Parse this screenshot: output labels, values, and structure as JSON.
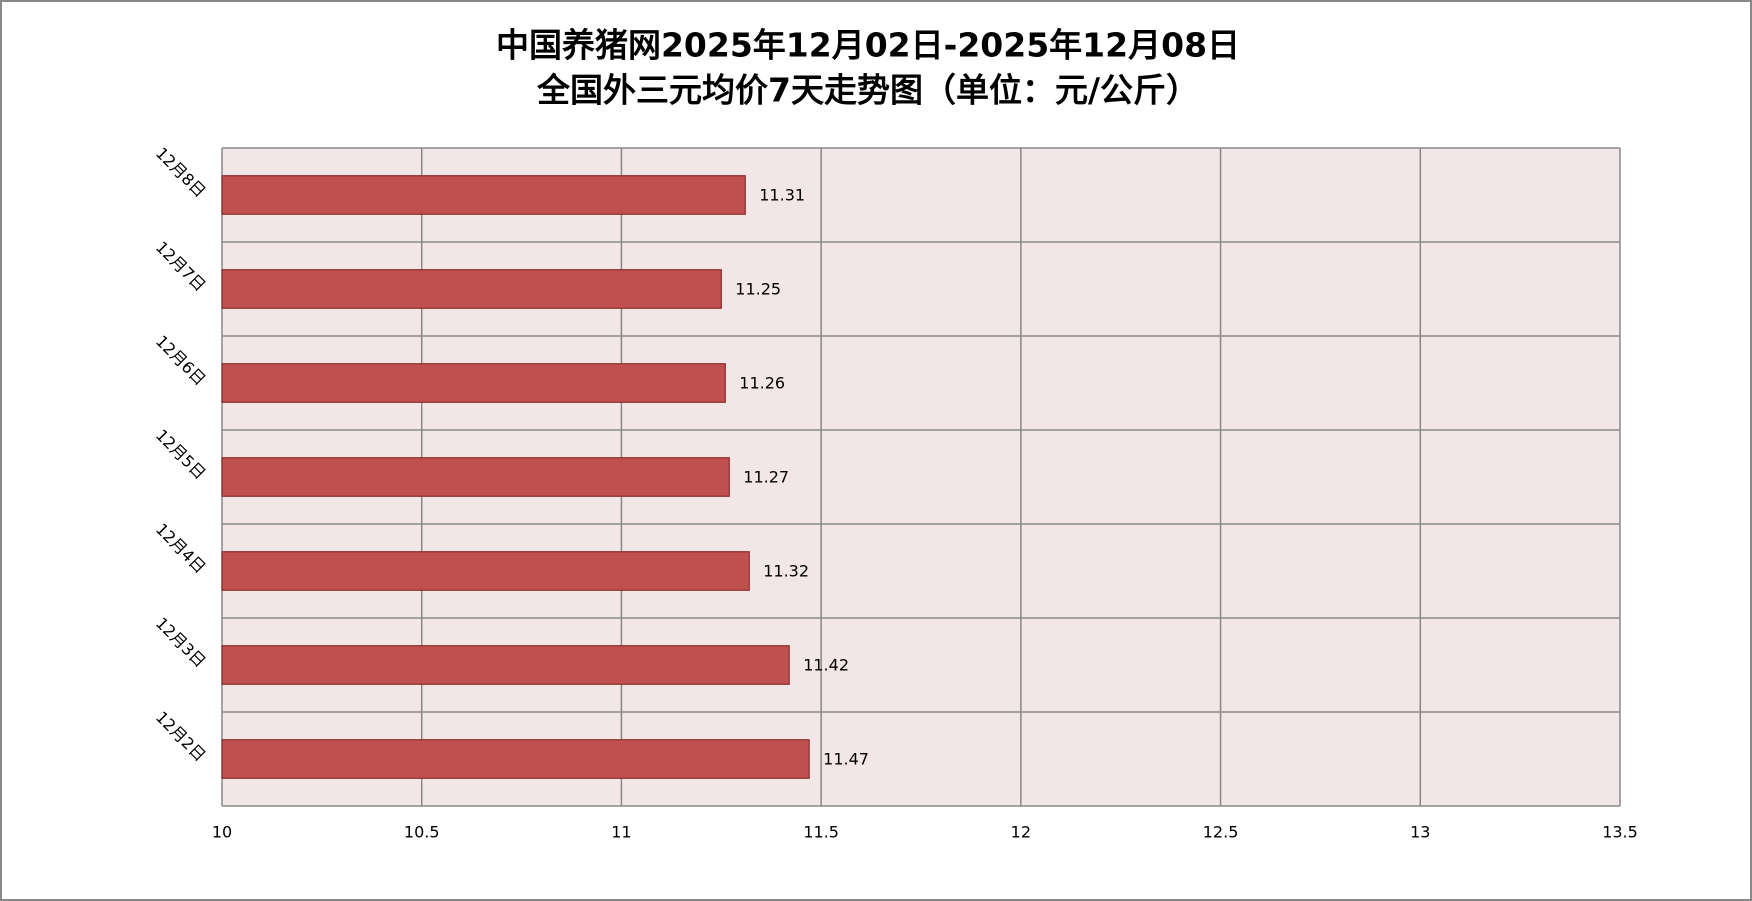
{
  "chart_data": {
    "type": "bar",
    "orientation": "horizontal",
    "title": "中国养猪网2025年12月02日-2025年12月08日",
    "subtitle": "全国外三元均价7天走势图（单位：元/公斤）",
    "categories": [
      "12月2日",
      "12月3日",
      "12月4日",
      "12月5日",
      "12月6日",
      "12月7日",
      "12月8日"
    ],
    "values": [
      11.47,
      11.42,
      11.32,
      11.27,
      11.26,
      11.25,
      11.31
    ],
    "color": "#c0504d",
    "xlim": [
      10,
      13.5
    ],
    "xticks": [
      10,
      10.5,
      11,
      11.5,
      12,
      12.5,
      13,
      13.5
    ],
    "grid": true
  }
}
